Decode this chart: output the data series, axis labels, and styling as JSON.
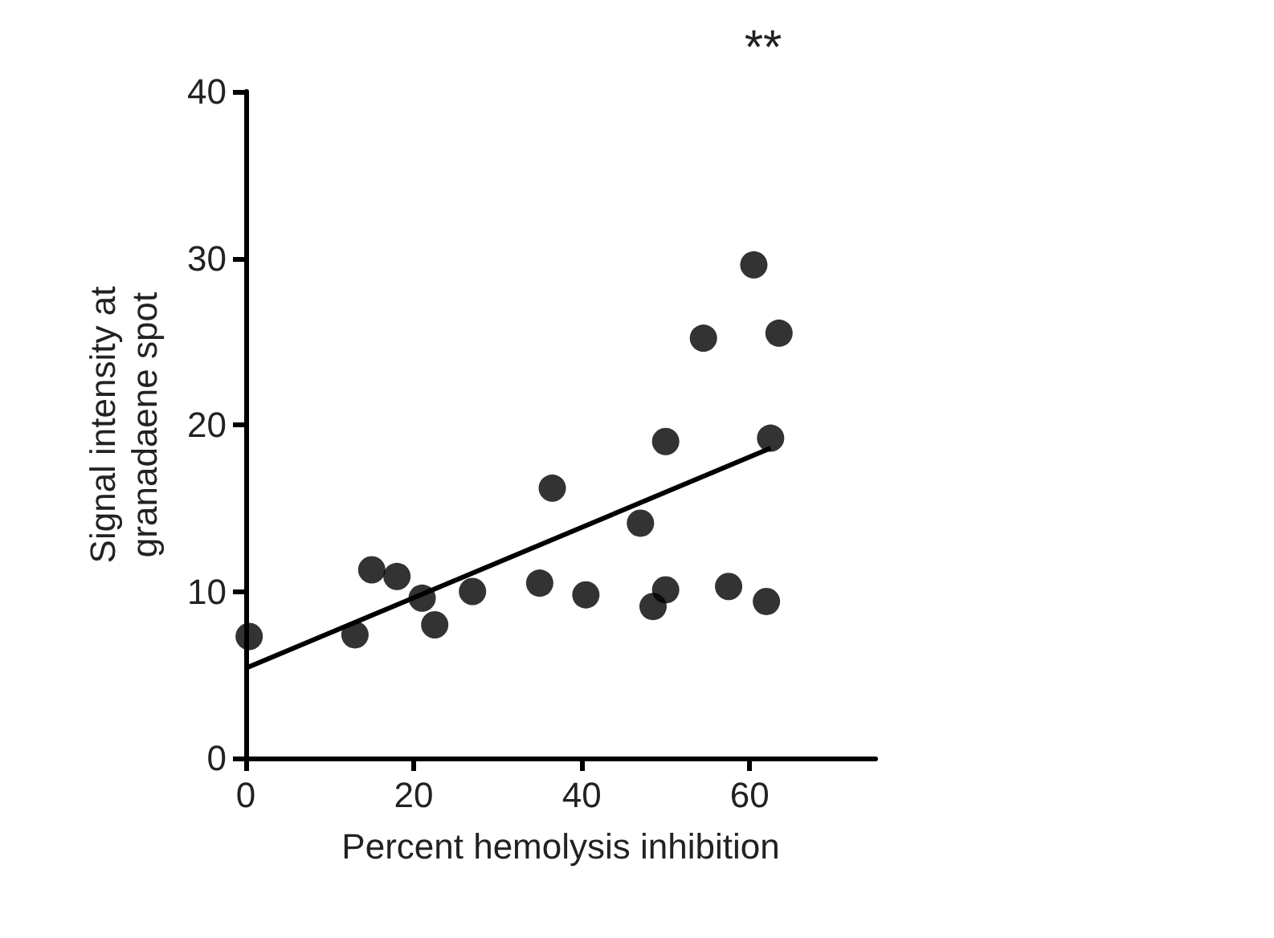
{
  "chart_data": {
    "type": "scatter",
    "title": "**",
    "xlabel": "Percent hemolysis inhibition",
    "ylabel": "Signal intensity at\ngranadaene spot",
    "xlim": [
      0,
      75
    ],
    "xticks": [
      0,
      20,
      40,
      60
    ],
    "ylim": [
      0,
      40
    ],
    "yticks": [
      0,
      10,
      20,
      30,
      40
    ],
    "grid": false,
    "marker": "circle",
    "series": [
      {
        "color": "#000000",
        "x": [
          0.4,
          13,
          15,
          18,
          21,
          22.5,
          27,
          35,
          36.5,
          40.5,
          47,
          48.5,
          50,
          50,
          54.5,
          57.5,
          60.5,
          62,
          62.5,
          63.5
        ],
        "values": [
          7.3,
          7.4,
          11.3,
          10.9,
          9.6,
          8.0,
          10.0,
          10.5,
          16.2,
          9.8,
          14.1,
          9.1,
          19.0,
          10.1,
          25.2,
          10.3,
          29.6,
          9.4,
          19.2,
          25.5
        ]
      },
      {
        "type": "line",
        "color": "#000000",
        "marker": "none",
        "line_style": "solid",
        "x": [
          0,
          62.5
        ],
        "values": [
          5.4,
          18.6
        ]
      }
    ]
  }
}
